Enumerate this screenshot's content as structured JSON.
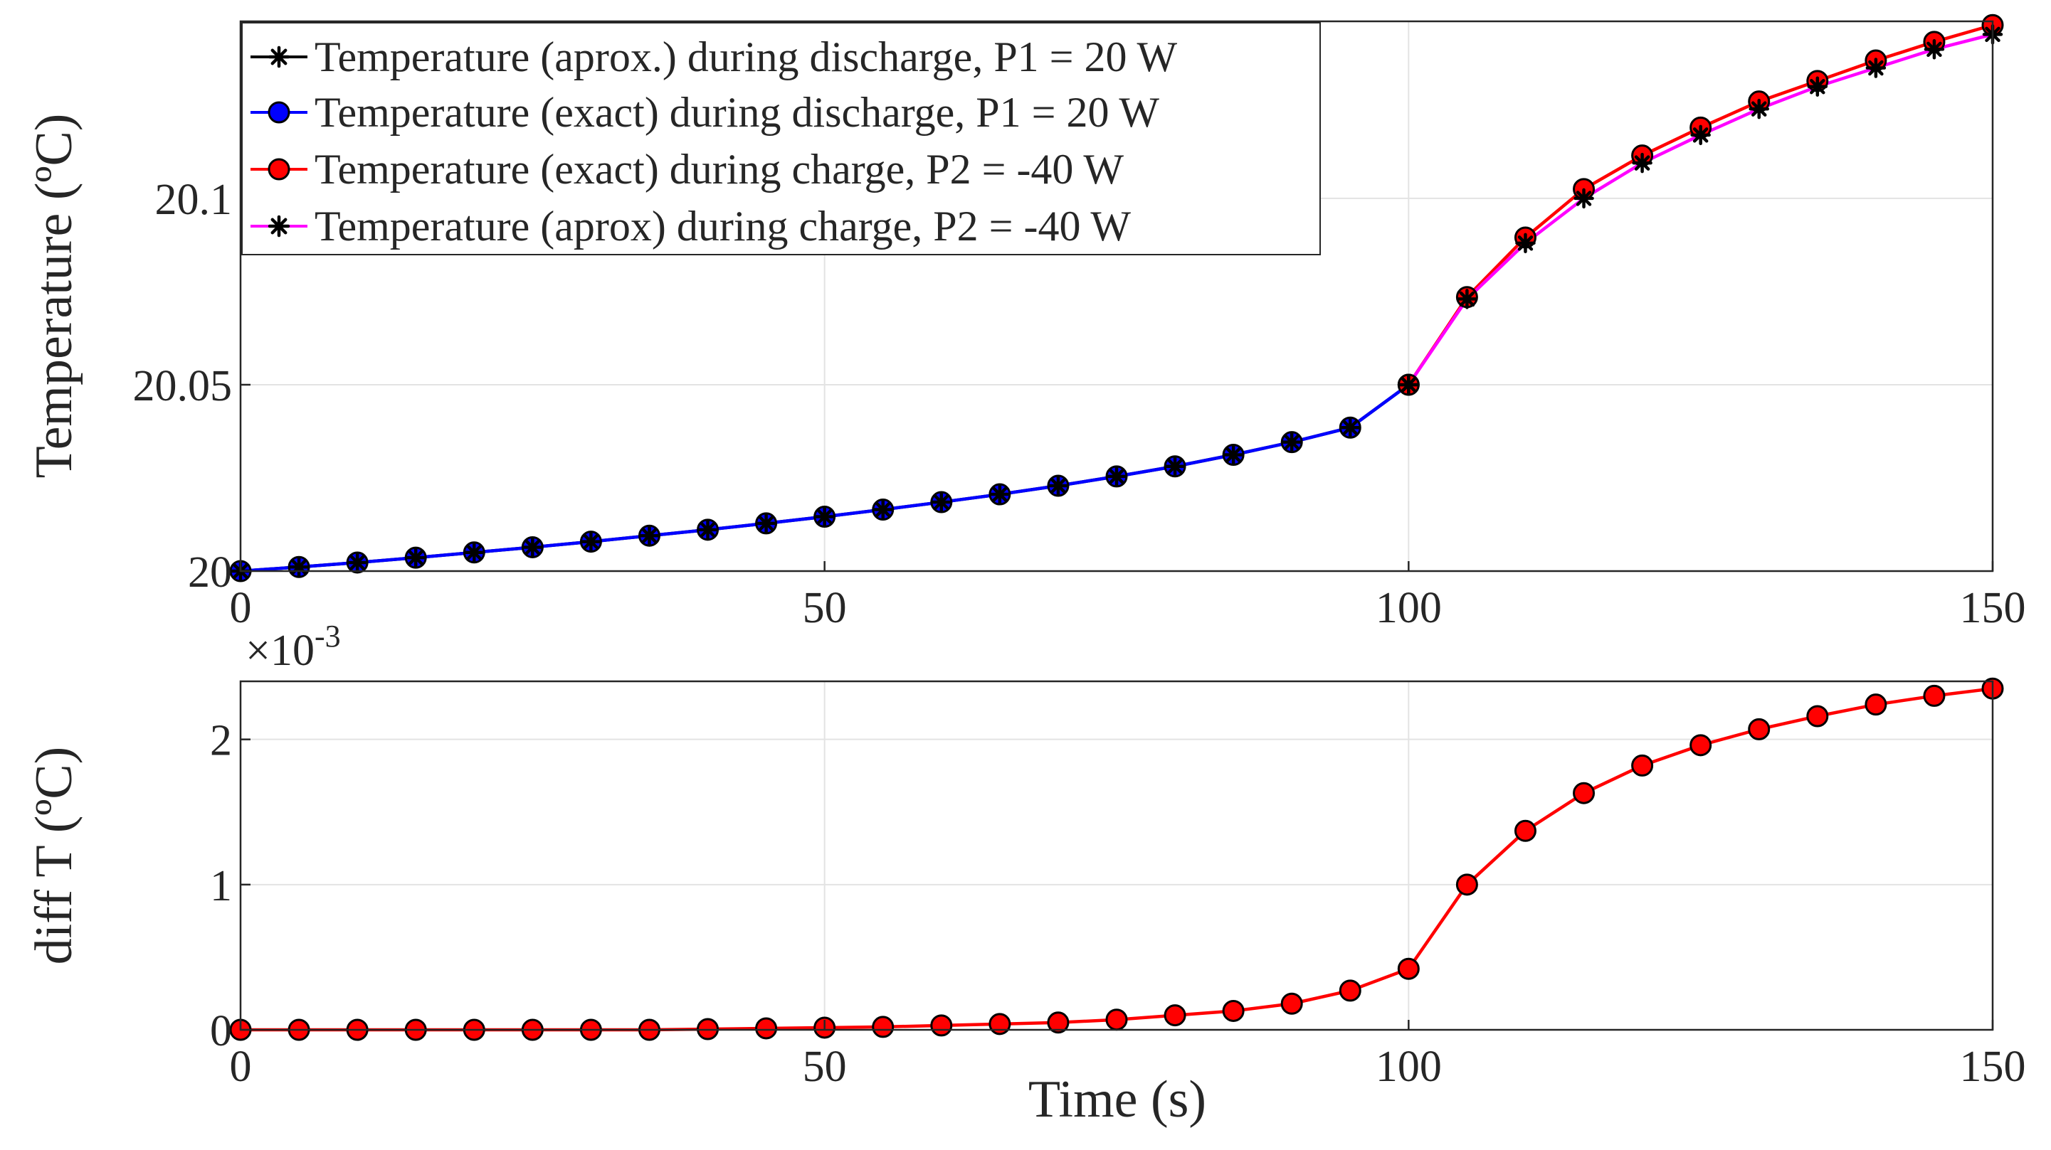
{
  "chart_data": [
    {
      "type": "line",
      "panel": "top",
      "xlabel": "",
      "ylabel": "Temperature (ºC)",
      "xlim": [
        0,
        150
      ],
      "ylim": [
        20,
        20.1475
      ],
      "xticks": [
        0,
        50,
        100,
        150
      ],
      "xtick_labels": [
        "0",
        "50",
        "100",
        "150"
      ],
      "yticks": [
        20,
        20.05,
        20.1
      ],
      "ytick_labels": [
        "20",
        "20.05",
        "20.1"
      ],
      "grid": true,
      "legend_position": "top-left",
      "series": [
        {
          "name": "Temperature (aprox.) during discharge, P1 = 20 W",
          "color": "#000000",
          "marker": "asterisk",
          "x": [
            0,
            5,
            10,
            15,
            20,
            25,
            30,
            35,
            40,
            45,
            50,
            55,
            60,
            65,
            70,
            75,
            80,
            85,
            90,
            95,
            100
          ],
          "y": [
            20.0,
            20.0011,
            20.0023,
            20.0036,
            20.005,
            20.0064,
            20.0079,
            20.0095,
            20.0111,
            20.0128,
            20.0146,
            20.0165,
            20.0185,
            20.0206,
            20.0229,
            20.0254,
            20.0281,
            20.0312,
            20.0346,
            20.0385,
            20.05
          ]
        },
        {
          "name": "Temperature (exact) during discharge, P1 = 20 W",
          "color": "#0000ff",
          "marker": "circle",
          "x": [
            0,
            5,
            10,
            15,
            20,
            25,
            30,
            35,
            40,
            45,
            50,
            55,
            60,
            65,
            70,
            75,
            80,
            85,
            90,
            95,
            100
          ],
          "y": [
            20.0,
            20.0011,
            20.0023,
            20.0036,
            20.005,
            20.0064,
            20.0079,
            20.0095,
            20.0111,
            20.0128,
            20.0146,
            20.0165,
            20.0185,
            20.0206,
            20.0229,
            20.0254,
            20.0281,
            20.0312,
            20.0346,
            20.0385,
            20.05
          ]
        },
        {
          "name": "Temperature (exact) during charge, P2 = -40 W",
          "color": "#ff0000",
          "marker": "circle",
          "x": [
            100,
            105,
            110,
            115,
            120,
            125,
            130,
            135,
            140,
            145,
            150
          ],
          "y": [
            20.05,
            20.0735,
            20.0895,
            20.1025,
            20.1115,
            20.119,
            20.126,
            20.1315,
            20.137,
            20.142,
            20.1465
          ]
        },
        {
          "name": "Temperature (aprox) during charge, P2 = -40 W",
          "color": "#ff00ff",
          "marker": "asterisk",
          "x": [
            100,
            105,
            110,
            115,
            120,
            125,
            130,
            135,
            140,
            145,
            150
          ],
          "y": [
            20.05,
            20.073,
            20.088,
            20.1,
            20.1095,
            20.117,
            20.124,
            20.13,
            20.135,
            20.14,
            20.144
          ]
        }
      ]
    },
    {
      "type": "line",
      "panel": "bottom",
      "xlabel": "Time (s)",
      "ylabel": "diff T (ºC)",
      "exponent_label": "×10",
      "exponent_power": "-3",
      "xlim": [
        0,
        150
      ],
      "ylim": [
        0,
        2.4
      ],
      "xticks": [
        0,
        50,
        100,
        150
      ],
      "xtick_labels": [
        "0",
        "50",
        "100",
        "150"
      ],
      "yticks": [
        0,
        1,
        2
      ],
      "ytick_labels": [
        "0",
        "1",
        "2"
      ],
      "grid": true,
      "series": [
        {
          "name": "diff T",
          "color": "#ff0000",
          "marker": "circle",
          "x": [
            0,
            5,
            10,
            15,
            20,
            25,
            30,
            35,
            40,
            45,
            50,
            55,
            60,
            65,
            70,
            75,
            80,
            85,
            90,
            95,
            100,
            105,
            110,
            115,
            120,
            125,
            130,
            135,
            140,
            145,
            150
          ],
          "y": [
            0,
            0,
            0,
            0,
            0,
            0,
            0,
            0,
            0.005,
            0.01,
            0.015,
            0.02,
            0.03,
            0.04,
            0.05,
            0.07,
            0.1,
            0.13,
            0.18,
            0.27,
            0.42,
            1.0,
            1.37,
            1.63,
            1.82,
            1.96,
            2.07,
            2.16,
            2.24,
            2.3,
            2.35
          ]
        }
      ]
    }
  ]
}
